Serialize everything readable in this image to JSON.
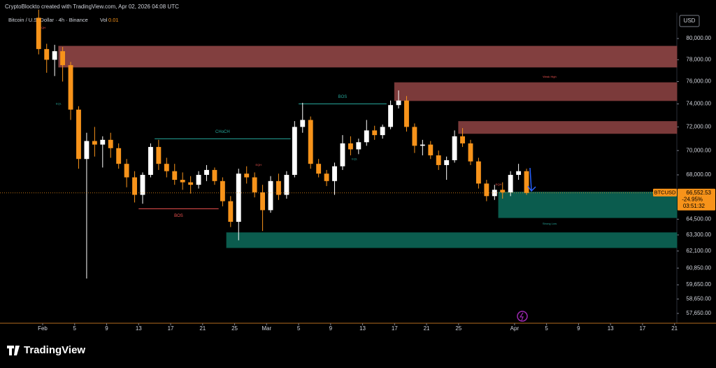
{
  "chart_data": {
    "type": "candlestick",
    "header": "CryptoBlockto created with TradingView.com, Apr 02, 2026 04:08 UTC",
    "legend": {
      "symbol": "Bitcoin / U.S. Dollar · 4h · Binance",
      "volume_label": "Vol",
      "volume": "0.01"
    },
    "currency": "USD",
    "brand": "TradingView",
    "log_scale": true,
    "grid": false,
    "up_color": "#ffffff",
    "down_color": "#f7931a",
    "ylim": [
      56980,
      82510
    ],
    "xlim": [
      "2026-01-26T16:00Z",
      "2026-04-21T07:00Z"
    ],
    "yticks": [
      {
        "value": 80000,
        "label": "80,000.00"
      },
      {
        "value": 78000,
        "label": "78,000.00"
      },
      {
        "value": 76000,
        "label": "76,000.00"
      },
      {
        "value": 74000,
        "label": "74,000.00"
      },
      {
        "value": 72000,
        "label": "72,000.00"
      },
      {
        "value": 70000,
        "label": "70,000.00"
      },
      {
        "value": 68000,
        "label": "68,000.00"
      },
      {
        "value": 64500,
        "label": "64,500.00"
      },
      {
        "value": 63300,
        "label": "63,300.00"
      },
      {
        "value": 62100,
        "label": "62,100.00"
      },
      {
        "value": 60850,
        "label": "60,850.00"
      },
      {
        "value": 59650,
        "label": "59,650.00"
      },
      {
        "value": 58650,
        "label": "58,650.00"
      },
      {
        "value": 57650,
        "label": "57,650.00"
      }
    ],
    "xticks": [
      {
        "value": "2026-02-01",
        "label": "Feb"
      },
      {
        "value": "2026-02-05",
        "label": "5"
      },
      {
        "value": "2026-02-09",
        "label": "9"
      },
      {
        "value": "2026-02-13",
        "label": "13"
      },
      {
        "value": "2026-02-17",
        "label": "17"
      },
      {
        "value": "2026-02-21",
        "label": "21"
      },
      {
        "value": "2026-02-25",
        "label": "25"
      },
      {
        "value": "2026-03-01",
        "label": "Mar"
      },
      {
        "value": "2026-03-05",
        "label": "5"
      },
      {
        "value": "2026-03-09",
        "label": "9"
      },
      {
        "value": "2026-03-13",
        "label": "13"
      },
      {
        "value": "2026-03-17",
        "label": "17"
      },
      {
        "value": "2026-03-21",
        "label": "21"
      },
      {
        "value": "2026-03-25",
        "label": "25"
      },
      {
        "value": "2026-04-01",
        "label": "Apr"
      },
      {
        "value": "2026-04-05",
        "label": "5"
      },
      {
        "value": "2026-04-09",
        "label": "9"
      },
      {
        "value": "2026-04-13",
        "label": "13"
      },
      {
        "value": "2026-04-17",
        "label": "17"
      },
      {
        "value": "2026-04-21",
        "label": "21"
      }
    ],
    "x": [
      "2026-01-31",
      "2026-02-01",
      "2026-02-02",
      "2026-02-03",
      "2026-02-04",
      "2026-02-05",
      "2026-02-06",
      "2026-02-07",
      "2026-02-08",
      "2026-02-09",
      "2026-02-10",
      "2026-02-11",
      "2026-02-12",
      "2026-02-13",
      "2026-02-14",
      "2026-02-15",
      "2026-02-16",
      "2026-02-17",
      "2026-02-18",
      "2026-02-19",
      "2026-02-20",
      "2026-02-21",
      "2026-02-22",
      "2026-02-23",
      "2026-02-24",
      "2026-02-25",
      "2026-02-26",
      "2026-02-27",
      "2026-02-28",
      "2026-03-01",
      "2026-03-02",
      "2026-03-03",
      "2026-03-04",
      "2026-03-05",
      "2026-03-06",
      "2026-03-07",
      "2026-03-08",
      "2026-03-09",
      "2026-03-10",
      "2026-03-11",
      "2026-03-12",
      "2026-03-13",
      "2026-03-14",
      "2026-03-15",
      "2026-03-16",
      "2026-03-17",
      "2026-03-18",
      "2026-03-19",
      "2026-03-20",
      "2026-03-21",
      "2026-03-22",
      "2026-03-23",
      "2026-03-24",
      "2026-03-25",
      "2026-03-26",
      "2026-03-27",
      "2026-03-28",
      "2026-03-29",
      "2026-03-30",
      "2026-03-31",
      "2026-04-01",
      "2026-04-02"
    ],
    "open": [
      82000,
      79000,
      78000,
      78800,
      77500,
      73500,
      69300,
      70800,
      70500,
      70900,
      70200,
      68900,
      67800,
      66400,
      68000,
      70300,
      68900,
      68300,
      67600,
      67400,
      67200,
      68000,
      68400,
      67500,
      65900,
      64300,
      68100,
      67800,
      66600,
      65200,
      67500,
      66400,
      68000,
      72000,
      72600,
      68900,
      68100,
      67500,
      68700,
      70600,
      70100,
      70700,
      71700,
      71300,
      72000,
      73900,
      74300,
      72000,
      70400,
      70500,
      69600,
      68800,
      69200,
      71200,
      70600,
      69100,
      67300,
      66300,
      66800,
      66600,
      68000,
      68300
    ],
    "high": [
      82800,
      79500,
      79400,
      79200,
      77800,
      73800,
      71500,
      72000,
      71200,
      71500,
      70600,
      69300,
      68300,
      68200,
      70600,
      70900,
      69400,
      68900,
      68200,
      67900,
      68300,
      68800,
      68600,
      67800,
      66300,
      68500,
      68700,
      68200,
      67200,
      67900,
      68100,
      68300,
      72500,
      74100,
      72900,
      69300,
      68400,
      69000,
      71300,
      71200,
      71000,
      72600,
      72100,
      72200,
      74300,
      75200,
      74700,
      72300,
      70900,
      70800,
      70000,
      69500,
      71700,
      71900,
      70900,
      69400,
      67600,
      67200,
      67400,
      68300,
      68900,
      68500
    ],
    "low": [
      78500,
      76800,
      76500,
      76000,
      72600,
      68500,
      60100,
      69500,
      68600,
      69400,
      68500,
      67000,
      65800,
      65700,
      67800,
      68400,
      67800,
      67200,
      66800,
      66500,
      66900,
      67500,
      67200,
      65500,
      63900,
      62900,
      67300,
      66200,
      63600,
      65000,
      66000,
      66100,
      67800,
      71500,
      68500,
      67800,
      67100,
      66400,
      68400,
      69600,
      69700,
      70400,
      70900,
      71000,
      71800,
      73600,
      71600,
      69800,
      69600,
      69300,
      68400,
      67600,
      69000,
      70300,
      68800,
      66900,
      65900,
      66000,
      66100,
      66300,
      67600,
      66400
    ],
    "close": [
      79000,
      78000,
      78800,
      77500,
      73500,
      69300,
      70800,
      70500,
      70900,
      70200,
      68900,
      67800,
      66400,
      68000,
      70300,
      68900,
      68300,
      67600,
      67400,
      67200,
      68000,
      68400,
      67500,
      65900,
      64300,
      68100,
      67800,
      66600,
      65200,
      67500,
      66400,
      68000,
      72000,
      72600,
      68900,
      68100,
      67500,
      68700,
      70600,
      70100,
      70700,
      71700,
      71300,
      72000,
      73900,
      74300,
      72000,
      70400,
      70500,
      69600,
      68800,
      69200,
      71200,
      70600,
      69100,
      67300,
      66300,
      66800,
      66600,
      68000,
      68300,
      66552.53
    ],
    "last_price": {
      "value": 66552.53,
      "label": "66,552.53",
      "symbol": "BTCUSD",
      "change": "-24.95%",
      "countdown": "03:51:32",
      "color": "#f7931a"
    },
    "zones": [
      {
        "start": "2026-02-03",
        "top": 79270,
        "bottom": 77320,
        "color": "#823f3f"
      },
      {
        "start": "2026-03-17",
        "top": 75900,
        "bottom": 74290,
        "color": "#7b3a3a",
        "label": "Weak High"
      },
      {
        "start": "2026-03-25",
        "top": 72470,
        "bottom": 71440,
        "color": "#7b3a3a"
      },
      {
        "start": "2026-03-30",
        "top": 66620,
        "bottom": 64620,
        "color": "#0b5c4e",
        "label": "Strong Low"
      },
      {
        "start": "2026-02-24",
        "top": 63470,
        "bottom": 62350,
        "color": "#0b5c4e"
      }
    ],
    "levels": [
      {
        "start": "2026-02-15",
        "end": "2026-03-04",
        "value": 70990,
        "label": "CHoCH",
        "color": "#26a69a"
      },
      {
        "start": "2026-02-13",
        "end": "2026-02-23",
        "value": 65310,
        "label": "BOS",
        "color": "#ef5350"
      },
      {
        "start": "2026-03-05",
        "end": "2026-03-16",
        "value": 74000,
        "label": "BOS",
        "color": "#26a69a"
      }
    ],
    "markers": [
      {
        "date": "2026-02-01",
        "price": 81000,
        "label": "EQH",
        "color": "#ef5350"
      },
      {
        "date": "2026-02-03",
        "price": 74000,
        "label": "EQL",
        "color": "#26a69a"
      },
      {
        "date": "2026-02-28",
        "price": 68800,
        "label": "EQH",
        "color": "#ef5350"
      },
      {
        "date": "2026-03-12",
        "price": 69300,
        "label": "EQL",
        "color": "#26a69a"
      },
      {
        "date": "2026-03-30",
        "price": 67200,
        "label": "EQH",
        "color": "#ef5350"
      }
    ]
  }
}
